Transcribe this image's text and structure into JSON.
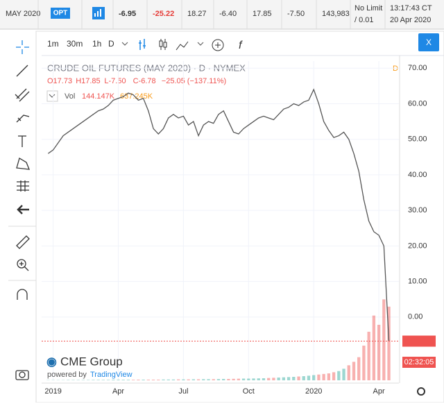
{
  "ticker_bar": {
    "contract": "MAY 2020",
    "opt": "OPT",
    "cells": [
      "-6.95",
      "-25.22",
      "18.27",
      "-6.40",
      "17.85",
      "-7.50",
      "143,983"
    ],
    "limit": [
      "No Limit",
      "/ 0.01"
    ],
    "time": [
      "13:17:43 CT",
      "20 Apr 2020"
    ]
  },
  "toolbar": {
    "intervals": [
      "1m",
      "30m",
      "1h",
      "D"
    ],
    "close": "X"
  },
  "legend": {
    "title": "CRUDE OIL FUTURES (MAY 2020) · D · NYMEX",
    "flag": "D",
    "ohlc": [
      "O17.73",
      "H17.85",
      "L-7.50",
      "C-6.78",
      "−25.05 (−137.11%)"
    ],
    "vol": "Vol",
    "vol_values": [
      "144.147K",
      "637.245K"
    ]
  },
  "countdown": "02:32:05",
  "brand": "CME Group",
  "powered": "powered by",
  "tv": "TradingView",
  "chart_data": {
    "type": "line",
    "color": "#555555",
    "up_color": "#26a69a",
    "down_color": "#ef5350",
    "x": [
      0,
      1,
      2,
      3,
      4,
      5,
      6,
      7,
      8,
      9,
      10,
      11,
      12,
      13,
      14,
      15,
      16,
      17,
      18,
      19,
      20,
      21,
      22,
      23,
      24,
      25,
      26,
      27,
      28,
      29,
      30,
      31,
      32,
      33,
      34,
      35,
      36,
      37,
      38,
      39,
      40,
      41,
      42,
      43,
      44,
      45,
      46,
      47,
      48,
      49,
      50,
      51,
      52,
      53,
      54,
      55,
      56,
      57,
      58,
      59,
      60,
      61,
      62,
      63,
      64,
      65,
      66,
      67,
      68
    ],
    "values": [
      46,
      47,
      49,
      51,
      52,
      53,
      54,
      55,
      56,
      57,
      58,
      58.5,
      59.5,
      61,
      61.5,
      62,
      63,
      62.5,
      61,
      61.5,
      58,
      53,
      51.5,
      53,
      56,
      57,
      56,
      56.5,
      54,
      55,
      51,
      54,
      55,
      54.5,
      57,
      58,
      55,
      52,
      51.5,
      53,
      54,
      55,
      56,
      56.5,
      56,
      55.5,
      57,
      58.5,
      59,
      60,
      59.5,
      60.5,
      61,
      64,
      60,
      55,
      52.5,
      50.5,
      51,
      52,
      50,
      46,
      41,
      33,
      27,
      24,
      23,
      20,
      -6.78
    ],
    "volumes": [
      2,
      2,
      2,
      2,
      3,
      3,
      3,
      3,
      3,
      4,
      4,
      4,
      4,
      5,
      5,
      5,
      5,
      5,
      6,
      6,
      6,
      6,
      6,
      7,
      7,
      7,
      8,
      8,
      8,
      9,
      9,
      10,
      10,
      10,
      11,
      12,
      12,
      13,
      14,
      15,
      15,
      16,
      17,
      18,
      20,
      22,
      24,
      26,
      28,
      30,
      33,
      36,
      40,
      45,
      50,
      55,
      60,
      70,
      80,
      100,
      130,
      160,
      200,
      300,
      420,
      560,
      480,
      700,
      637
    ],
    "vol_lim": [
      0,
      1200
    ],
    "xlim": [
      -1.3,
      70
    ],
    "xticks": [
      {
        "value": 1,
        "label": "2019"
      },
      {
        "value": 14,
        "label": "Apr"
      },
      {
        "value": 27,
        "label": "Jul"
      },
      {
        "value": 40,
        "label": "Oct"
      },
      {
        "value": 53,
        "label": "2020"
      },
      {
        "value": 66,
        "label": "Apr"
      }
    ],
    "ylim": [
      -17.8,
      72
    ],
    "yticks": [
      {
        "value": 70,
        "label": "70.00"
      },
      {
        "value": 60,
        "label": "60.00"
      },
      {
        "value": 50,
        "label": "50.00"
      },
      {
        "value": 40,
        "label": "40.00"
      },
      {
        "value": 30,
        "label": "30.00"
      },
      {
        "value": 20,
        "label": "20.00"
      },
      {
        "value": 10,
        "label": "10.00"
      },
      {
        "value": 0,
        "label": "0.00"
      }
    ],
    "grid": true
  }
}
